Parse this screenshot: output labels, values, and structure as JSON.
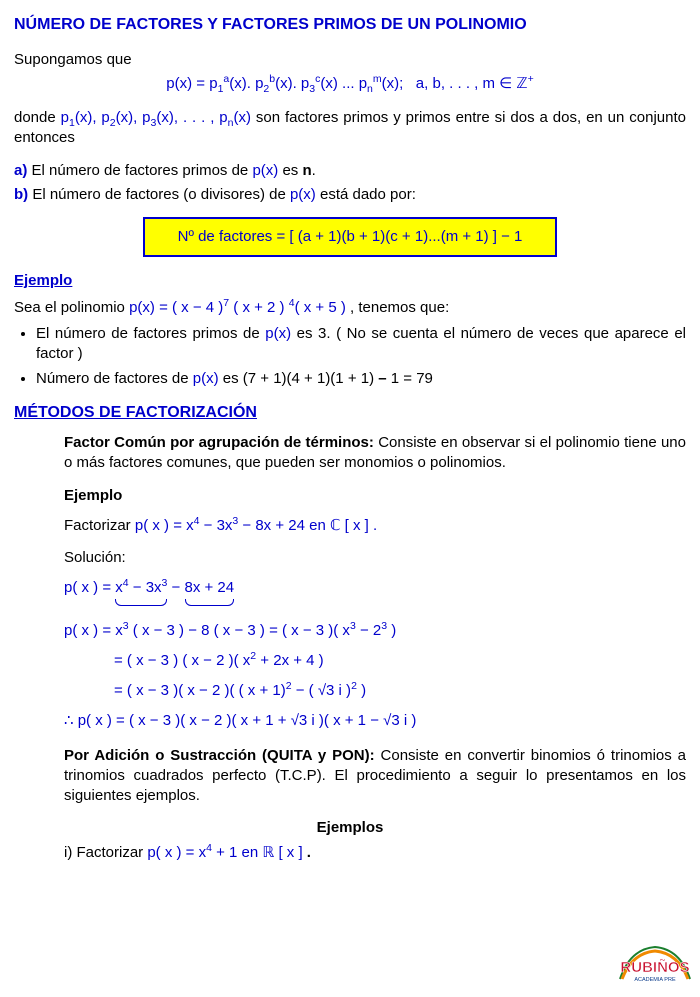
{
  "title": "NÚMERO DE FACTORES Y FACTORES PRIMOS DE UN POLINOMIO",
  "suppose": "Supongamos que",
  "main_formula_html": "p(x) = p<sub>1</sub><sup>a</sup>(x). p<sub>2</sub><sup>b</sup>(x). p<sub>3</sub><sup>c</sup>(x) ... p<sub>n</sub><sup>m</sup>(x);&nbsp;&nbsp;&nbsp;a, b, . . . , m ∈ ℤ<sup>+</sup>",
  "donde_pre": "donde ",
  "donde_math": "p<sub>1</sub>(x), p<sub>2</sub>(x), p<sub>3</sub>(x), . . . , p<sub>n</sub>(x)",
  "donde_post": " son factores primos y primos entre si dos a dos, en un conjunto entonces",
  "a_label": "a)",
  "a_text_pre": " El número de factores primos de ",
  "px": "p(x)",
  "a_text_post": " es ",
  "n_bold": "n",
  "b_label": "b)",
  "b_text_pre": " El número de factores (o divisores) de ",
  "b_text_post": " está dado por:",
  "box_text": "Nº de factores =  [ (a + 1)(b + 1)(c + 1)...(m + 1) ] − 1",
  "ejemplo": "Ejemplo",
  "sea_pre": "Sea el polinomio ",
  "sea_math": "p(x) = ( x − 4 )<sup>7</sup> ( x + 2 ) <sup>4</sup>( x + 5 )",
  "sea_post": " , tenemos que:",
  "bullet1_pre": "El número de factores primos de ",
  "bullet1_post": " es 3. ( No se cuenta el número de veces que aparece el factor )",
  "bullet2_pre": "Número de factores de ",
  "bullet2_mid": " es  (7 + 1)(4 + 1)(1 + 1) ",
  "bullet2_dash": "– ",
  "bullet2_end": "1 = 79",
  "metodos": "MÉTODOS DE FACTORIZACIÓN",
  "fc_title": "Factor Común por agrupación de términos:",
  "fc_body": " Consiste en observar si el polinomio tiene uno o más factores comunes, que pueden ser monomios o polinomios.",
  "fact_label_pre": "Factorizar ",
  "fact_math": "p( x )  =  x<sup>4</sup> −  3x<sup>3</sup> −  8x  +  24   en    ℂ [ x ] .",
  "solucion": "Solución:",
  "line1_a": "x<sup>4</sup> − 3x<sup>3</sup>",
  "line1_b": "8x + 24",
  "line2": "p( x ) = x<sup>3</sup> ( x − 3 ) − 8 ( x − 3 ) = ( x − 3 )( x<sup>3</sup> − 2<sup>3</sup> )",
  "line3": "= ( x − 3 ) ( x − 2 )( x<sup>2</sup> + 2x + 4 )",
  "line4": "= ( x − 3 )( x − 2 )( ( x + 1)<sup>2</sup> − ( √3 i )<sup>2</sup> )",
  "line5": "∴ p( x ) = ( x − 3 )( x − 2 )( x + 1 + √3 i )( x + 1 − √3 i )",
  "quita_title": "Por Adición o Sustracción (QUITA y PON):",
  "quita_body": " Consiste en convertir binomios ó trinomios a trinomios cuadrados perfecto (T.C.P). El procedimiento a seguir lo presentamos en los siguientes ejemplos.",
  "ejemplos": "Ejemplos",
  "item_i_pre": "i)   Factorizar ",
  "item_i_math": "p( x )  =  x<sup>4</sup> + 1 en  ℝ [ x ] ",
  "item_i_dot": ".",
  "logo_main": "RUBIÑOS",
  "logo_sub": "ACADEMIA PRE",
  "colors": {
    "blue": "#0000cc",
    "yellow": "#ffff00",
    "logo_red": "#c8102e",
    "logo_green": "#1b7f2e",
    "logo_orange": "#f08a00"
  }
}
